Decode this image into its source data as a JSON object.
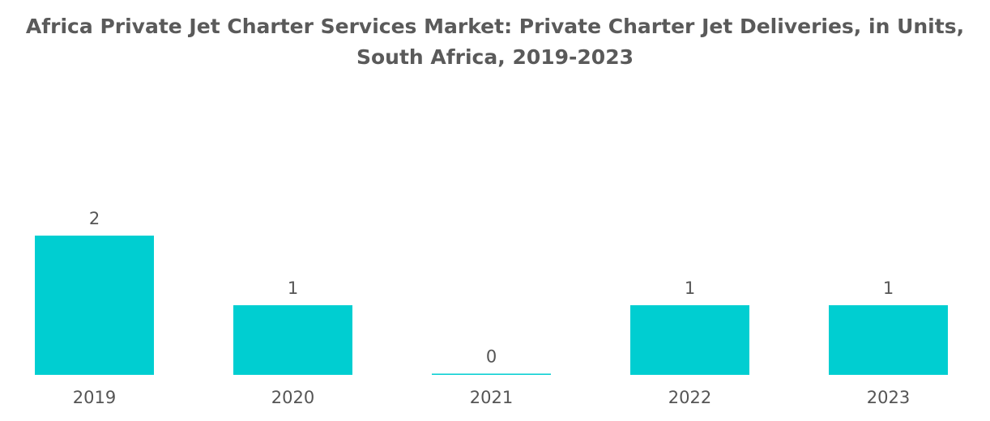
{
  "chart_data": {
    "type": "bar",
    "title": "Africa Private Jet Charter Services Market: Private Charter Jet Deliveries, in Units, South Africa, 2019-2023",
    "categories": [
      "2019",
      "2020",
      "2021",
      "2022",
      "2023"
    ],
    "values": [
      2,
      1,
      0,
      1,
      1
    ],
    "data_labels": [
      "2",
      "1",
      "0",
      "1",
      "1"
    ],
    "xlabel": "",
    "ylabel": "",
    "ylim": [
      0,
      2
    ],
    "grid": false,
    "legend": "none",
    "bar_color": "#00ced1"
  }
}
